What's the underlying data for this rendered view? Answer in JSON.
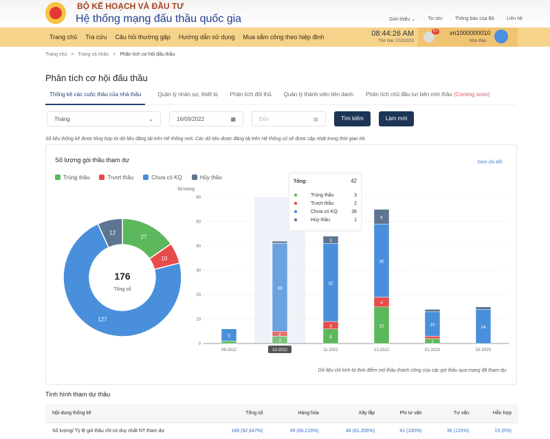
{
  "header": {
    "org": "BỘ KẾ HOẠCH VÀ ĐẦU TƯ",
    "system": "Hệ thống mạng đấu thầu quốc gia",
    "top_links": [
      "Giới thiệu ⌄",
      "Tin tức",
      "Thông báo của Bộ",
      "Liên hệ"
    ]
  },
  "nav": {
    "items": [
      "Trang chủ",
      "Tra cứu",
      "Câu hỏi thường gặp",
      "Hướng dẫn sử dụng",
      "Mua sắm công theo hiệp định"
    ],
    "time": "08:44:26 AM",
    "date": "Thứ Hai, 27/2/2023",
    "notif_badge": "5+",
    "username": "vn1000000010",
    "role": "Nhà thầu"
  },
  "breadcrumb": [
    "Trang chủ",
    ">",
    "Trang cá nhân",
    ">",
    "Phân tích cơ hội đấu thầu"
  ],
  "page_title": "Phân tích cơ hội đấu thầu",
  "tabs": [
    "Thống kê các cuộc thầu của nhà thầu",
    "Quản lý nhân sự, thiết bị",
    "Phân tích đối thủ",
    "Quản lý thành viên liên danh",
    "Phân tích chủ đầu tư/ bên mời thầu"
  ],
  "tab_coming_soon": "(Coming soon)",
  "filters": {
    "period": "Tháng",
    "from": "16/09/2022",
    "to_placeholder": "Đến",
    "search": "Tìm kiếm",
    "reset": "Làm mới"
  },
  "note": "Số liệu thống kê được tổng hợp từ dữ liệu đăng tải trên Hệ thống mới. Các dữ liệu được đăng tải trên Hệ thống cũ sẽ được cập nhật trong thời gian tới.",
  "card": {
    "title": "Số lượng gói thầu tham dự",
    "more": "Xem chi tiết",
    "total": "176",
    "total_label": "Tổng số",
    "footnote": "Dữ liệu chỉ tính từ thời điểm mở thầu thành công của các gói thầu qua mạng đã tham dự."
  },
  "colors": {
    "win": "#5cb85c",
    "lose": "#e94b4b",
    "pending": "#4a8fdb",
    "cancel": "#5d7590"
  },
  "chart_data": [
    {
      "type": "pie",
      "variant": "donut",
      "labels": [
        "Trúng thầu",
        "Trượt thầu",
        "Chưa có KQ",
        "Hủy thầu"
      ],
      "values": [
        27,
        10,
        127,
        12
      ],
      "total": 176
    },
    {
      "type": "bar",
      "stacked": true,
      "ylabel": "Số lượng",
      "ylim": [
        0,
        60
      ],
      "yticks": [
        0,
        10,
        20,
        30,
        40,
        50,
        60
      ],
      "categories": [
        "09-2022",
        "10-2022",
        "11-2022",
        "12-2022",
        "01-2023",
        "02-2023"
      ],
      "series": [
        {
          "name": "Trúng thầu",
          "values": [
            1,
            3,
            6,
            15,
            2,
            0
          ]
        },
        {
          "name": "Trượt thầu",
          "values": [
            0,
            2,
            3,
            4,
            1,
            0
          ]
        },
        {
          "name": "Chưa có KQ",
          "values": [
            5,
            36,
            32,
            30,
            10,
            14
          ]
        },
        {
          "name": "Hủy thầu",
          "values": [
            0,
            1,
            3,
            6,
            1,
            1
          ]
        }
      ],
      "highlighted": "10-2022",
      "tooltip": {
        "total_label": "Tổng:",
        "total": "42",
        "rows": [
          [
            "Trúng thầu",
            "3"
          ],
          [
            "Trượt thầu",
            "2"
          ],
          [
            "Chưa có KQ",
            "36"
          ],
          [
            "Hủy thầu",
            "1"
          ]
        ]
      }
    }
  ],
  "table": {
    "title": "Tình hình tham dự thầu",
    "headers": [
      "Nội dung thống kê",
      "Tổng số",
      "Hàng hóa",
      "Xây lắp",
      "Phi tư vấn",
      "Tư vấn",
      "Hỗn hợp"
    ],
    "rows": [
      [
        "Số lượng/ Tỷ lệ gói thầu chỉ có duy nhất NT tham dự",
        "189 (92,647%)",
        "49 (66,216%)",
        "48 (81,356%)",
        "41 (100%)",
        "36 (120%)",
        "15 (0%)"
      ]
    ]
  }
}
